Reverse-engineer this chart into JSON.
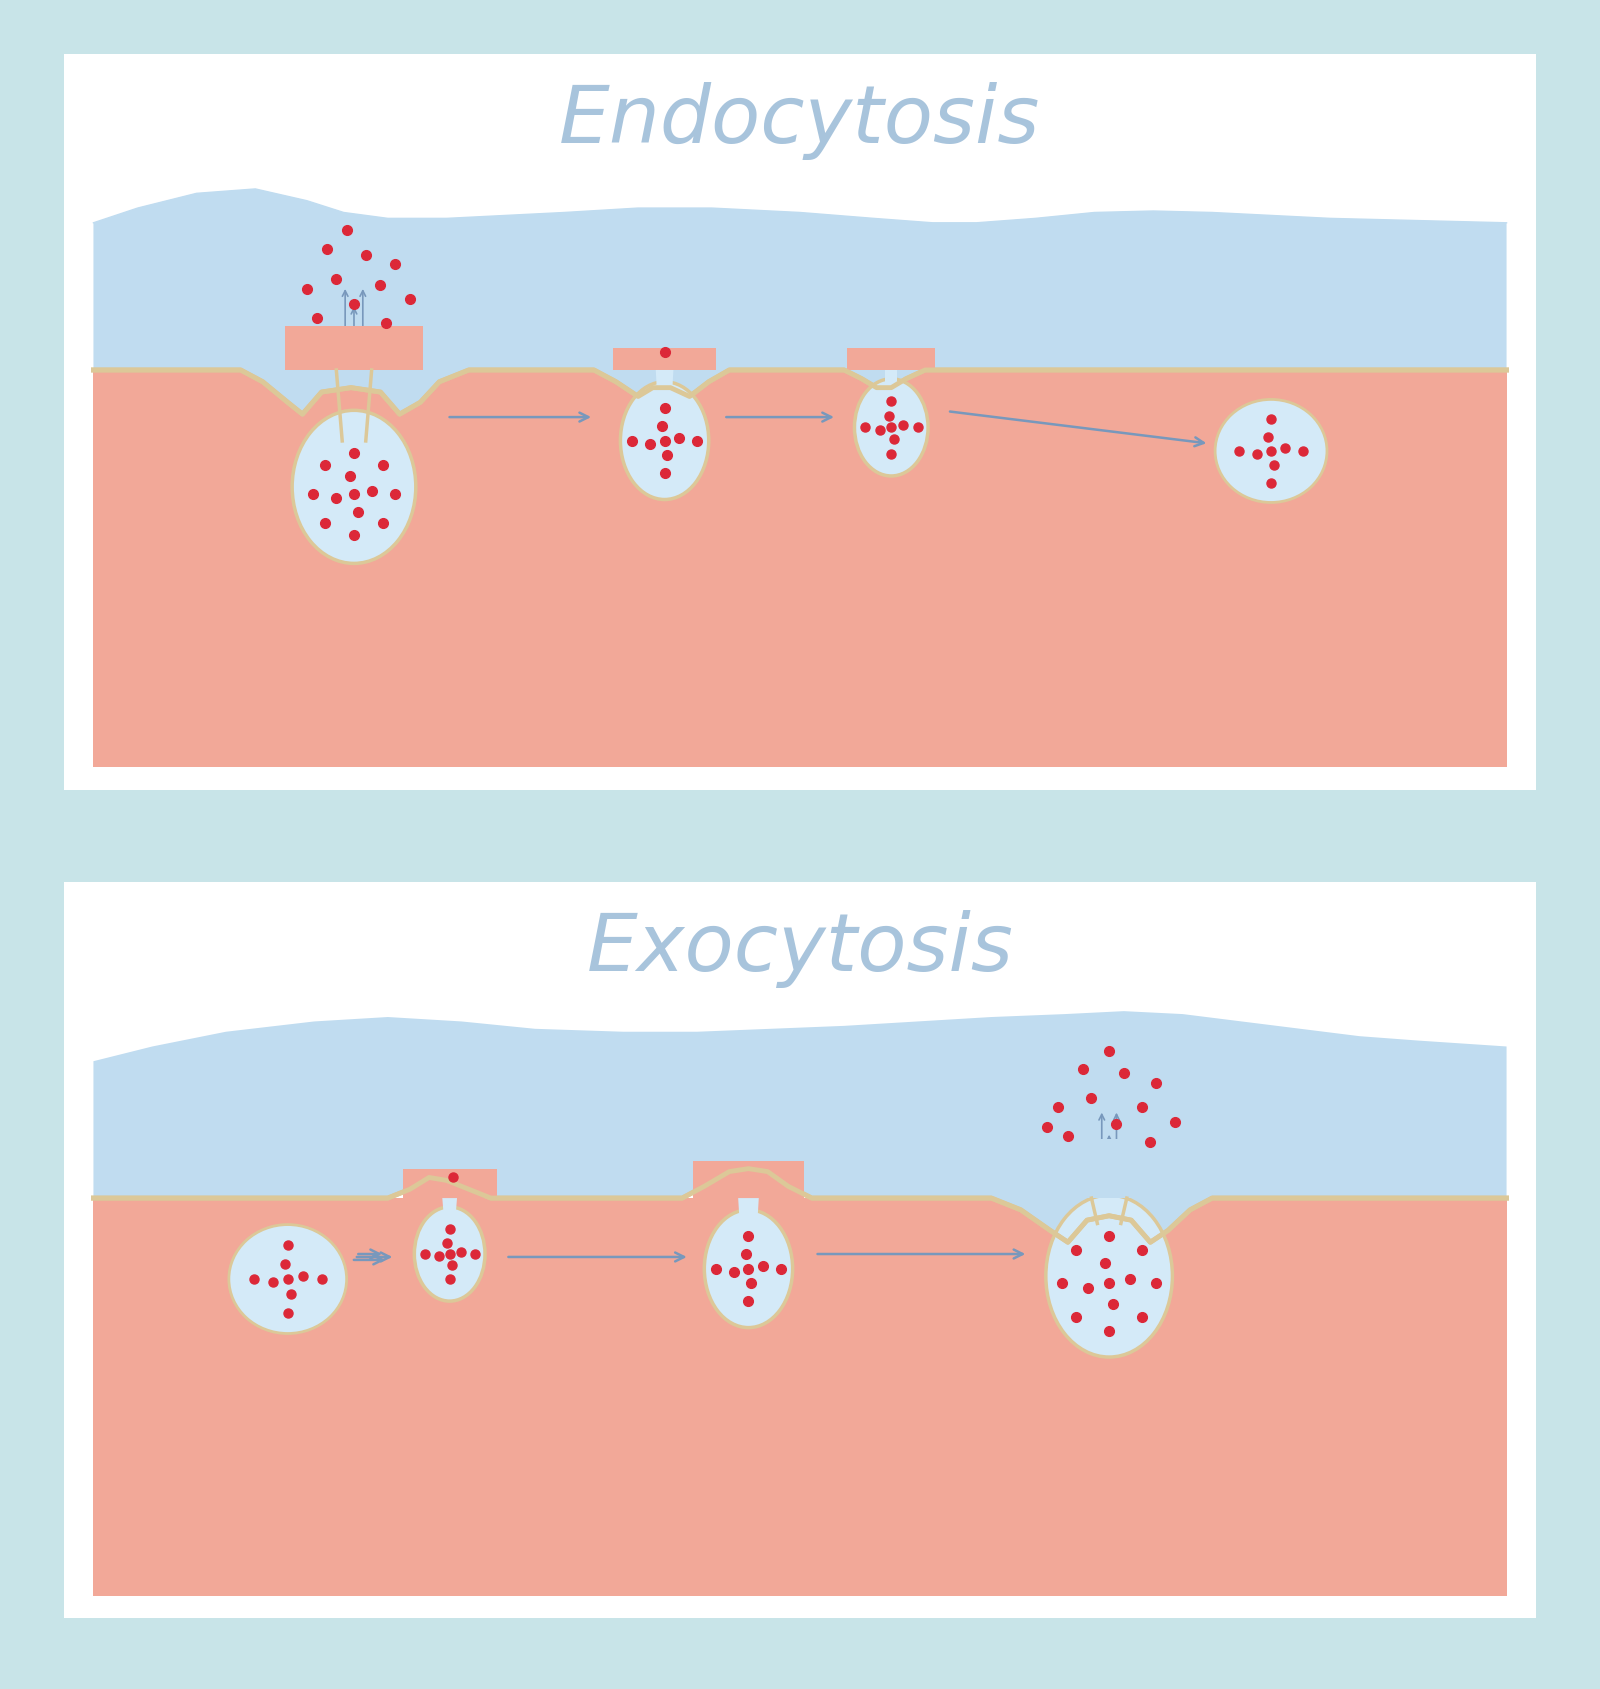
{
  "title_endo": "Endocytosis",
  "title_exo": "Exocytosis",
  "title_color": "#a8c4dc",
  "title_fontsize": 58,
  "bg_outer": "#c8e4e8",
  "bg_white": "#ffffff",
  "border_color": "#b0d8dc",
  "cell_fill": "#f2a898",
  "fluid_fill": "#c0dcf0",
  "vesicle_fill": "#d4eaf8",
  "vesicle_border": "#dcc898",
  "red_dot_color": "#dc2838",
  "arrow_color": "#7898bc",
  "membrane_color": "#dcc898",
  "membrane_lw": 3.5
}
